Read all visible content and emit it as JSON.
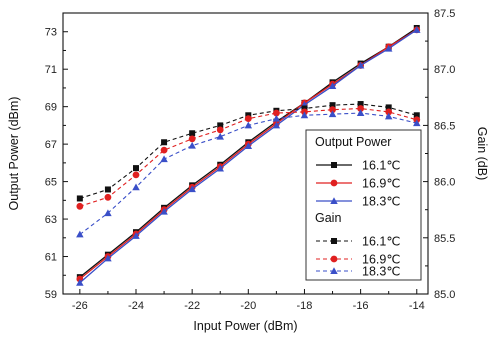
{
  "chart_data": {
    "type": "line",
    "title": "",
    "xlabel": "Input Power (dBm)",
    "ylabel_left": "Output Power (dBm)",
    "ylabel_right": "Gain (dB)",
    "x": [
      -26,
      -25,
      -24,
      -23,
      -22,
      -21,
      -20,
      -19,
      -18,
      -17,
      -16,
      -15,
      -14
    ],
    "xlim": [
      -26.6,
      -13.6
    ],
    "xticks": [
      "-26",
      "-24",
      "-22",
      "-20",
      "-18",
      "-16",
      "-14"
    ],
    "ylim_left": [
      59,
      74
    ],
    "yticks_left": [
      "59",
      "61",
      "63",
      "65",
      "67",
      "69",
      "71",
      "73"
    ],
    "ylim_right": [
      85.0,
      87.5
    ],
    "yticks_right": [
      "85.0",
      "85.5",
      "86.0",
      "86.5",
      "87.0",
      "87.5"
    ],
    "grid": false,
    "legend_position": "bottom-right",
    "legend": {
      "group1_title": "Output Power",
      "group2_title": "Gain"
    },
    "series": [
      {
        "name": "16.1℃",
        "group": "Output Power",
        "axis": "left",
        "style": "solid",
        "color": "#111111",
        "marker": "square",
        "values": [
          59.9,
          61.1,
          62.3,
          63.6,
          64.8,
          65.9,
          67.1,
          68.2,
          69.2,
          70.3,
          71.3,
          72.2,
          73.2
        ]
      },
      {
        "name": "16.9℃",
        "group": "Output Power",
        "axis": "left",
        "style": "solid",
        "color": "#e02020",
        "marker": "circle",
        "values": [
          59.8,
          61.0,
          62.2,
          63.5,
          64.7,
          65.8,
          67.0,
          68.1,
          69.2,
          70.2,
          71.2,
          72.2,
          73.1
        ]
      },
      {
        "name": "18.3℃",
        "group": "Output Power",
        "axis": "left",
        "style": "solid",
        "color": "#3a4fc8",
        "marker": "triangle",
        "values": [
          59.6,
          60.9,
          62.1,
          63.4,
          64.6,
          65.7,
          66.9,
          68.0,
          69.1,
          70.1,
          71.2,
          72.1,
          73.1
        ]
      },
      {
        "name": "16.1℃",
        "group": "Gain",
        "axis": "right",
        "style": "dashed",
        "color": "#111111",
        "marker": "square",
        "values": [
          85.85,
          85.93,
          86.12,
          86.35,
          86.43,
          86.5,
          86.59,
          86.63,
          86.65,
          86.68,
          86.69,
          86.66,
          86.59
        ]
      },
      {
        "name": "16.9℃",
        "group": "Gain",
        "axis": "right",
        "style": "dashed",
        "color": "#e02020",
        "marker": "circle",
        "values": [
          85.78,
          85.86,
          86.06,
          86.28,
          86.38,
          86.46,
          86.56,
          86.61,
          86.62,
          86.64,
          86.65,
          86.62,
          86.55
        ]
      },
      {
        "name": "18.3℃",
        "group": "Gain",
        "axis": "right",
        "style": "dashed",
        "color": "#3a4fc8",
        "marker": "triangle",
        "values": [
          85.53,
          85.72,
          85.95,
          86.2,
          86.32,
          86.4,
          86.5,
          86.56,
          86.59,
          86.6,
          86.61,
          86.58,
          86.52
        ]
      }
    ]
  }
}
